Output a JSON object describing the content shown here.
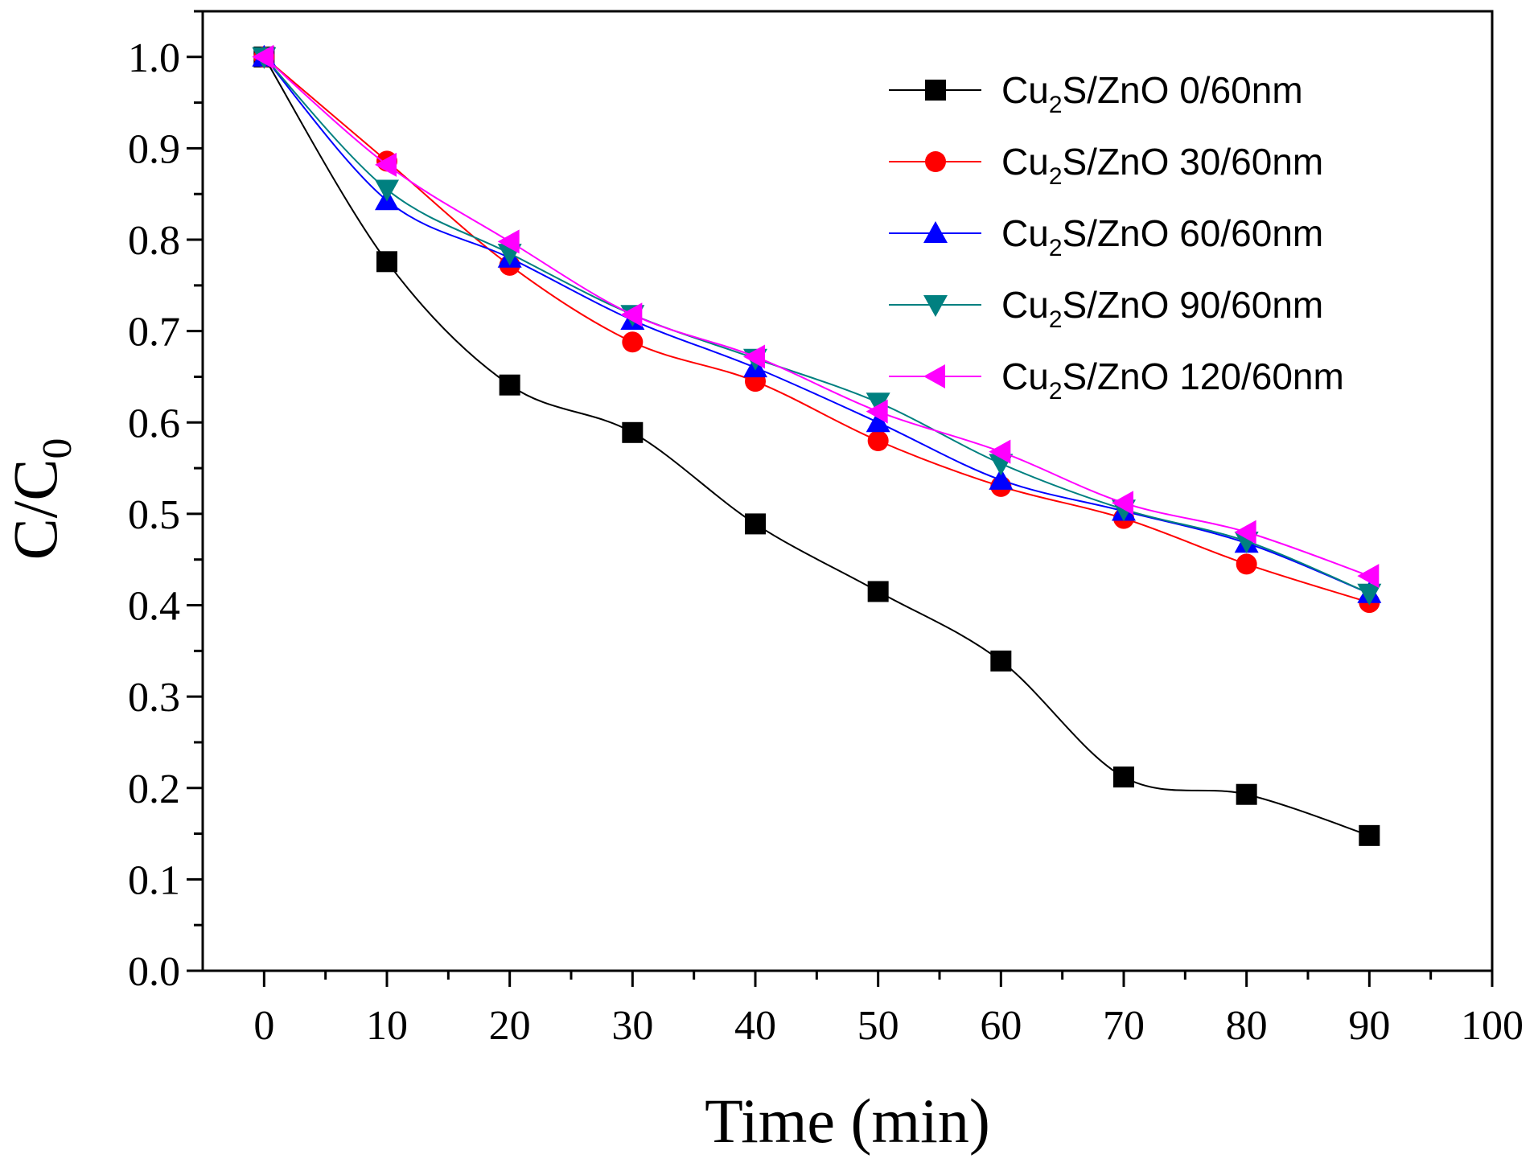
{
  "chart_data": {
    "type": "line",
    "title": "",
    "xlabel": "Time (min)",
    "ylabel_main": "C/C",
    "ylabel_sub": "0",
    "xlim": [
      -5,
      100
    ],
    "ylim": [
      0.0,
      1.05
    ],
    "x_ticks": [
      0,
      10,
      20,
      30,
      40,
      50,
      60,
      70,
      80,
      90,
      100
    ],
    "x_tick_labels": [
      "0",
      "10",
      "20",
      "30",
      "40",
      "50",
      "60",
      "70",
      "80",
      "90",
      "100"
    ],
    "y_ticks": [
      0.0,
      0.1,
      0.2,
      0.3,
      0.4,
      0.5,
      0.6,
      0.7,
      0.8,
      0.9,
      1.0
    ],
    "y_tick_labels": [
      "0.0",
      "0.1",
      "0.2",
      "0.3",
      "0.4",
      "0.5",
      "0.6",
      "0.7",
      "0.8",
      "0.9",
      "1.0"
    ],
    "grid": false,
    "legend_position": "top-right",
    "x": [
      0,
      10,
      20,
      30,
      40,
      50,
      60,
      70,
      80,
      90
    ],
    "series": [
      {
        "name": "Cu2S/ZnO 0/60nm",
        "label_pre": "Cu",
        "label_sub": "2",
        "label_post": "S/ZnO 0/60nm",
        "color": "#000000",
        "marker": "square",
        "values": [
          1.0,
          0.776,
          0.641,
          0.589,
          0.489,
          0.415,
          0.339,
          0.212,
          0.193,
          0.148
        ]
      },
      {
        "name": "Cu2S/ZnO 30/60nm",
        "label_pre": "Cu",
        "label_sub": "2",
        "label_post": "S/ZnO 30/60nm",
        "color": "#ff0000",
        "marker": "circle",
        "values": [
          1.0,
          0.886,
          0.772,
          0.688,
          0.645,
          0.58,
          0.53,
          0.495,
          0.445,
          0.403
        ]
      },
      {
        "name": "Cu2S/ZnO 60/60nm",
        "label_pre": "Cu",
        "label_sub": "2",
        "label_post": "S/ZnO 60/60nm",
        "color": "#0000ff",
        "marker": "triangle-up",
        "values": [
          1.0,
          0.843,
          0.78,
          0.712,
          0.66,
          0.6,
          0.537,
          0.503,
          0.468,
          0.413
        ]
      },
      {
        "name": "Cu2S/ZnO 90/60nm",
        "label_pre": "Cu",
        "label_sub": "2",
        "label_post": "S/ZnO 90/60nm",
        "color": "#008080",
        "marker": "triangle-down",
        "values": [
          1.0,
          0.855,
          0.785,
          0.718,
          0.67,
          0.622,
          0.555,
          0.505,
          0.47,
          0.413
        ]
      },
      {
        "name": "Cu2S/ZnO 120/60nm",
        "label_pre": "Cu",
        "label_sub": "2",
        "label_post": "S/ZnO 120/60nm",
        "color": "#ff00ff",
        "marker": "triangle-left",
        "values": [
          1.0,
          0.882,
          0.798,
          0.718,
          0.672,
          0.612,
          0.568,
          0.512,
          0.48,
          0.432
        ]
      }
    ]
  }
}
